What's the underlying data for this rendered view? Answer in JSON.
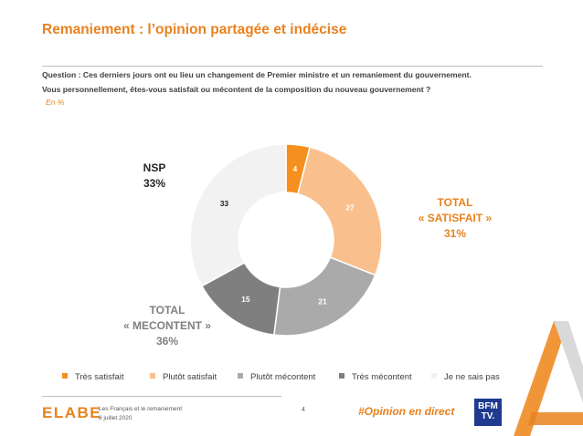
{
  "header": {
    "title": "Remaniement : l’opinion partagée et indécise",
    "question_line1": "Question : Ces derniers jours ont eu lieu un changement de Premier ministre et un remaniement du gouvernement.",
    "question_line2": "Vous personnellement, êtes-vous satisfait ou mécontent de la composition du nouveau gouvernement ?",
    "unit": "En %"
  },
  "callouts": {
    "nsp_label": "NSP",
    "nsp_value": "33%",
    "satisfait_label1": "TOTAL",
    "satisfait_label2": "« SATISFAIT »",
    "satisfait_value": "31%",
    "mecontent_label1": "TOTAL",
    "mecontent_label2": "« MECONTENT »",
    "mecontent_value": "36%"
  },
  "chart_data": {
    "type": "pie",
    "variant": "donut",
    "categories": [
      "Très satisfait",
      "Plutôt satisfait",
      "Plutôt mécontent",
      "Très mécontent",
      "Je ne sais pas"
    ],
    "values": [
      4,
      27,
      21,
      15,
      33
    ],
    "colors": [
      "#f5901e",
      "#f9c08e",
      "#aaaaaa",
      "#7f7f7f",
      "#f2f2f2"
    ],
    "label_colors": [
      "#ffffff",
      "#ffffff",
      "#ffffff",
      "#ffffff",
      "#262626"
    ],
    "legend_position": "bottom"
  },
  "footer": {
    "logo": "ELABE",
    "line1": "Les Français et le remaniement",
    "line2": "8 juillet 2020",
    "page": "4",
    "hashtag": "#Opinion en direct",
    "bfm_line1": "BFM",
    "bfm_line2": "TV."
  }
}
